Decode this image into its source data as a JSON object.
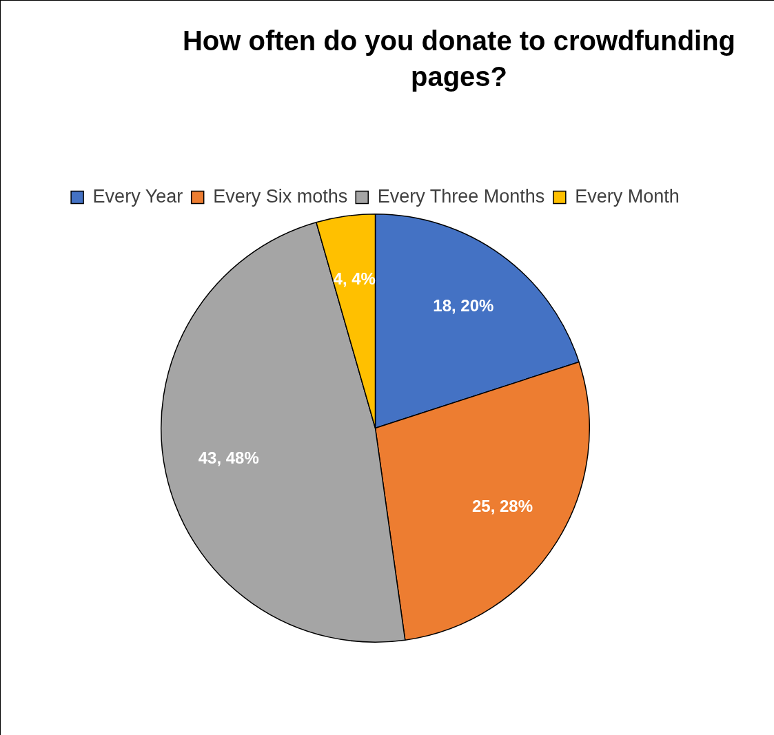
{
  "chart_data": {
    "type": "pie",
    "title": "How often do you donate to crowdfunding pages?",
    "categories": [
      "Every Year",
      "Every Six moths",
      "Every Three Months",
      "Every Month"
    ],
    "values": [
      18,
      25,
      43,
      4
    ],
    "colors": [
      "#4472c4",
      "#ed7d31",
      "#a5a5a5",
      "#ffc000"
    ],
    "value_labels": [
      "18, 20%",
      "25, 28%",
      "43, 48%",
      "4, 4%"
    ],
    "legend": "top"
  }
}
